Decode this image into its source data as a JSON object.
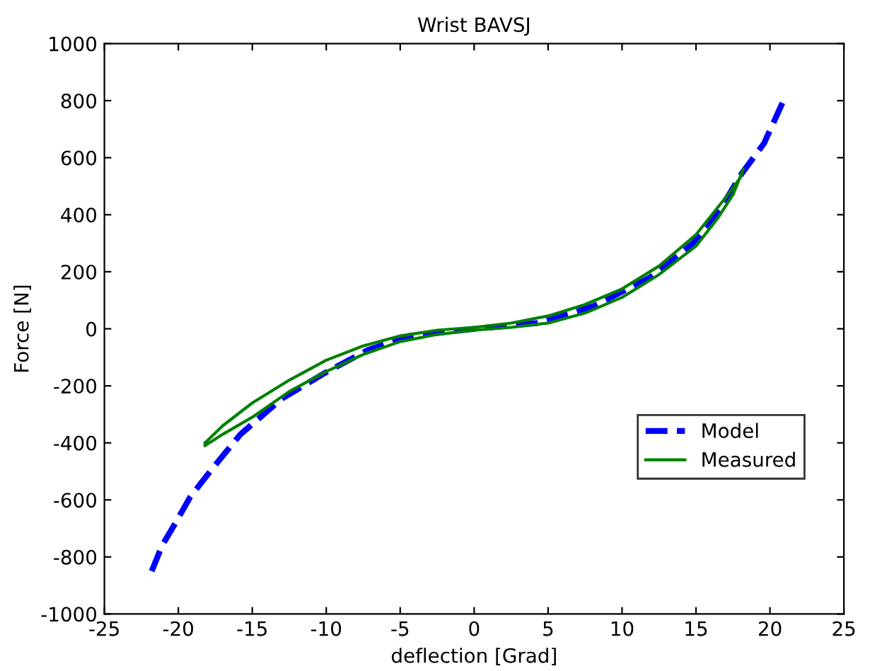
{
  "chart_data": {
    "type": "line",
    "title": "Wrist BAVSJ",
    "xlabel": "deflection [Grad]",
    "ylabel": "Force [N]",
    "xlim": [
      -25,
      25
    ],
    "xticks": [
      -25,
      -20,
      -15,
      -10,
      -5,
      0,
      5,
      10,
      15,
      20,
      25
    ],
    "ylim": [
      -1000,
      1000
    ],
    "yticks": [
      -1000,
      -800,
      -600,
      -400,
      -200,
      0,
      200,
      400,
      600,
      800,
      1000
    ],
    "grid": false,
    "legend": "bottom right",
    "series": [
      {
        "name": "Model",
        "color": "#0000ff",
        "line_style": "dashed",
        "x": [
          -21.8,
          -21.1,
          -20.3,
          -19.2,
          -17.7,
          -15.8,
          -13,
          -10.1,
          -7.2,
          -4.4,
          0,
          4.3,
          8.1,
          11.9,
          14.8,
          16.7,
          18.1,
          19.6,
          21
        ],
        "values": [
          -850,
          -760,
          -690,
          -590,
          -490,
          -370,
          -245,
          -155,
          -75,
          -25,
          0,
          20,
          80,
          180,
          300,
          425,
          545,
          650,
          810
        ]
      },
      {
        "name": "Measured",
        "color": "#008000",
        "line_style": "solid",
        "x": [
          -18.2,
          -17,
          -15,
          -12.5,
          -10,
          -7.5,
          -5,
          -2.5,
          0,
          2.5,
          5,
          7.5,
          10,
          12.5,
          15,
          17,
          18,
          18.2,
          17.5,
          16.5,
          15,
          12.5,
          10,
          7.5,
          5,
          2.5,
          0,
          -2.5,
          -5,
          -7.5,
          -10,
          -12.5,
          -15,
          -17,
          -18.2
        ],
        "values": [
          -400,
          -340,
          -260,
          -180,
          -110,
          -60,
          -25,
          -5,
          5,
          20,
          45,
          85,
          140,
          220,
          330,
          460,
          530,
          560,
          470,
          390,
          290,
          190,
          110,
          55,
          20,
          5,
          -5,
          -20,
          -45,
          -90,
          -150,
          -220,
          -310,
          -370,
          -410
        ]
      }
    ]
  }
}
